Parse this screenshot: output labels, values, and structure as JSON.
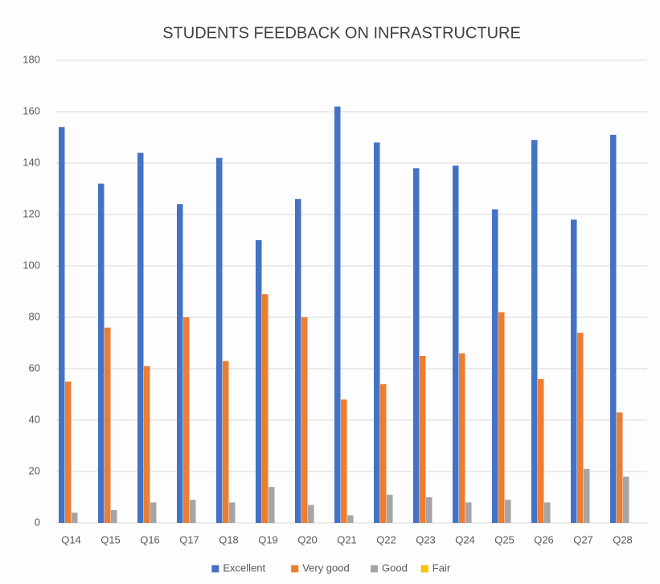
{
  "chart_data": {
    "type": "bar",
    "title": "STUDENTS FEEDBACK ON INFRASTRUCTURE",
    "categories": [
      "Q14",
      "Q15",
      "Q16",
      "Q17",
      "Q18",
      "Q19",
      "Q20",
      "Q21",
      "Q22",
      "Q23",
      "Q24",
      "Q25",
      "Q26",
      "Q27",
      "Q28"
    ],
    "series": [
      {
        "name": "Excellent",
        "color": "#4472c4",
        "values": [
          154,
          132,
          144,
          124,
          142,
          110,
          126,
          162,
          148,
          138,
          139,
          122,
          149,
          118,
          151
        ]
      },
      {
        "name": "Very good",
        "color": "#ed7d31",
        "values": [
          55,
          76,
          61,
          80,
          63,
          89,
          80,
          48,
          54,
          65,
          66,
          82,
          56,
          74,
          43
        ]
      },
      {
        "name": "Good",
        "color": "#a5a5a5",
        "values": [
          4,
          5,
          8,
          9,
          8,
          14,
          7,
          3,
          11,
          10,
          8,
          9,
          8,
          21,
          18
        ]
      },
      {
        "name": "Fair",
        "color": "#ffc000",
        "values": [
          0,
          0,
          0,
          0,
          0,
          0,
          0,
          0,
          0,
          0,
          0,
          0,
          0,
          0,
          0
        ]
      }
    ],
    "ylim": [
      0,
      180
    ],
    "yticks": [
      0,
      20,
      40,
      60,
      80,
      100,
      120,
      140,
      160,
      180
    ],
    "grid": true,
    "legend": "bottom"
  }
}
